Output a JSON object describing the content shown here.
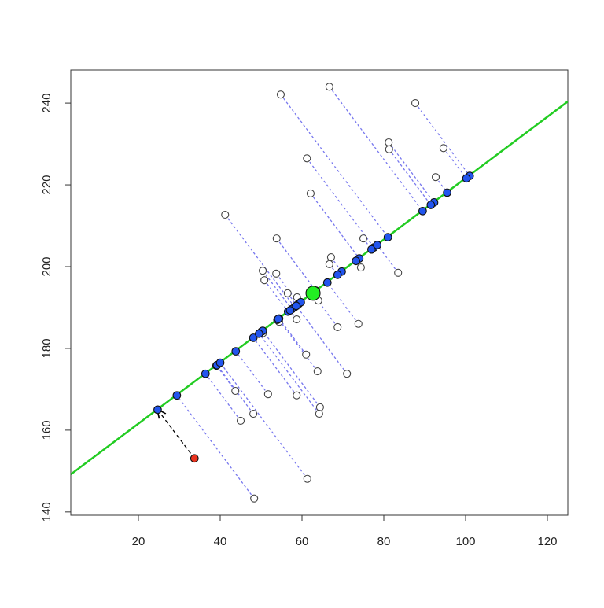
{
  "chart_data": {
    "type": "scatter",
    "xlim": [
      3.46,
      125
    ],
    "ylim": [
      139.2,
      248.1
    ],
    "xticks": [
      20,
      40,
      60,
      80,
      100,
      120
    ],
    "yticks": [
      140,
      160,
      180,
      200,
      220,
      240
    ],
    "lines": [
      {
        "x": [
          3.46,
          125
        ],
        "y": [
          149.2,
          240.4
        ],
        "color": "#22cc22"
      }
    ],
    "series": [
      {
        "marker": "open",
        "color": "#444444",
        "size": 4.5,
        "x": [
          66.7,
          54.8,
          87.7,
          81.2,
          81.3,
          94.6,
          61.2,
          92.7,
          62.1,
          41.2,
          53.8,
          75.0,
          67.1,
          66.7,
          74.4,
          83.5,
          50.4,
          53.7,
          50.8,
          56.5,
          58.8,
          64.0,
          58.7,
          54.4,
          68.7,
          73.8,
          50.4,
          61.0,
          63.8,
          71.0,
          43.7,
          51.7,
          58.7,
          64.4,
          64.2,
          48.1,
          45.0,
          61.3,
          48.3
        ],
        "y": [
          244.0,
          242.1,
          240.0,
          230.4,
          228.7,
          229.0,
          226.5,
          221.9,
          217.9,
          212.7,
          206.9,
          206.9,
          202.3,
          200.6,
          199.8,
          198.5,
          199.0,
          198.3,
          196.7,
          193.5,
          192.5,
          191.7,
          187.1,
          186.5,
          185.2,
          186.0,
          183.7,
          178.5,
          174.4,
          173.8,
          169.6,
          168.8,
          168.5,
          165.6,
          164.0,
          164.0,
          162.3,
          148.1,
          143.3
        ]
      },
      {
        "marker": "filled",
        "color": "#2255ee",
        "size": 4.8,
        "x": [
          89.5,
          81.0,
          101.0,
          92.3,
          91.5,
          100.2,
          77.6,
          95.5,
          74.0,
          58.2,
          63.4,
          77.0,
          69.7,
          68.7,
          73.2,
          78.4,
          57.5,
          59.2,
          56.6,
          58.7,
          59.7,
          62.7,
          57.1,
          54.0,
          62.6,
          66.2,
          50.1,
          54.4,
          54.2,
          58.6,
          39.1,
          43.8,
          48.1,
          50.4,
          49.5,
          39.2,
          36.4,
          40.0,
          29.4
        ],
        "y": [
          213.6,
          207.2,
          222.2,
          215.7,
          215.1,
          221.6,
          204.7,
          218.1,
          202.0,
          190.1,
          194.1,
          204.2,
          198.8,
          198.0,
          201.4,
          205.3,
          189.6,
          190.9,
          189.0,
          190.5,
          191.3,
          193.5,
          189.3,
          187.0,
          193.4,
          196.1,
          184.1,
          187.3,
          187.2,
          190.4,
          175.8,
          179.3,
          182.6,
          184.3,
          183.6,
          175.9,
          173.8,
          176.5,
          168.5
        ]
      },
      {
        "marker": "filled",
        "color": "#e8321e",
        "size": 4.8,
        "x": [
          33.7
        ],
        "y": [
          153.1
        ]
      },
      {
        "marker": "filled",
        "color": "#2255ee",
        "size": 4.8,
        "x": [
          24.7
        ],
        "y": [
          165.0
        ]
      },
      {
        "marker": "filled",
        "color": "#22ee22",
        "size": 9,
        "x": [
          62.7
        ],
        "y": [
          193.5
        ]
      }
    ],
    "connectors": [
      {
        "from": 0,
        "to": 1,
        "color": "#7777ee",
        "style": "dotted"
      },
      {
        "from": 2,
        "to": 3,
        "color": "#000000",
        "style": "dashed",
        "arrow": true
      }
    ]
  }
}
